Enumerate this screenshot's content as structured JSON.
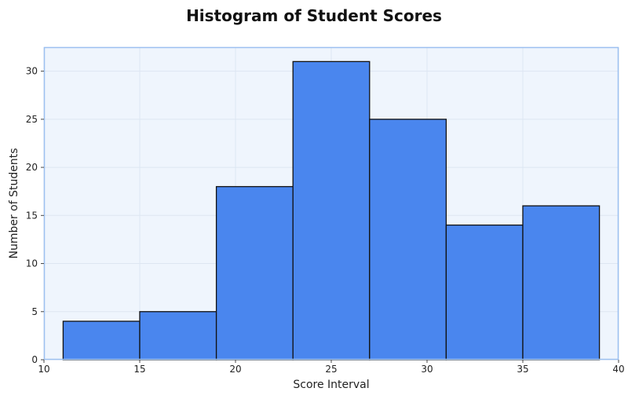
{
  "chart_data": {
    "type": "bar",
    "title": "Histogram of Student Scores",
    "xlabel": "Score Interval",
    "ylabel": "Number of Students",
    "bins": [
      {
        "start": 11,
        "end": 15,
        "count": 4
      },
      {
        "start": 15,
        "end": 19,
        "count": 5
      },
      {
        "start": 19,
        "end": 23,
        "count": 18
      },
      {
        "start": 23,
        "end": 27,
        "count": 31
      },
      {
        "start": 27,
        "end": 31,
        "count": 25
      },
      {
        "start": 31,
        "end": 35,
        "count": 14
      },
      {
        "start": 35,
        "end": 39,
        "count": 16
      }
    ],
    "xlim": [
      10,
      40
    ],
    "ylim": [
      0,
      32.5
    ],
    "xticks": [
      "10",
      "15",
      "20",
      "25",
      "30",
      "35",
      "40"
    ],
    "yticks": [
      "0",
      "5",
      "10",
      "15",
      "20",
      "25",
      "30"
    ],
    "grid": true,
    "colors": {
      "bar_fill": "#4a86ee",
      "bar_edge": "#111111",
      "plot_background": "#eff5fd",
      "plot_border": "#9cc0f0",
      "grid": "#dde6f2"
    }
  }
}
